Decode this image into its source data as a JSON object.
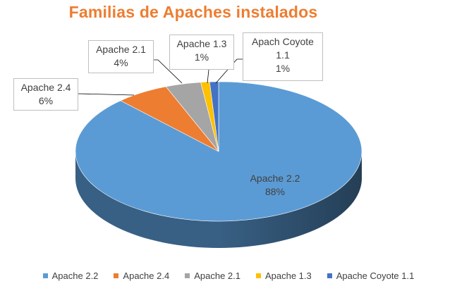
{
  "chart_data": {
    "type": "pie",
    "title": "Familias de Apaches instalados",
    "categories": [
      "Apache 2.2",
      "Apache 2.4",
      "Apache 2.1",
      "Apache 1.3",
      "Apache Coyote 1.1"
    ],
    "values": [
      88,
      6,
      4,
      1,
      1
    ],
    "colors": [
      "#5B9BD5",
      "#ED7D31",
      "#A5A5A5",
      "#FFC000",
      "#4472C4"
    ],
    "labels": [
      {
        "name_lines": [
          "Apache 2.2"
        ],
        "pct": "88%"
      },
      {
        "name_lines": [
          "Apache 2.4"
        ],
        "pct": "6%"
      },
      {
        "name_lines": [
          "Apache 2.1"
        ],
        "pct": "4%"
      },
      {
        "name_lines": [
          "Apache 1.3"
        ],
        "pct": "1%"
      },
      {
        "name_lines": [
          "Apach Coyote",
          "1.1"
        ],
        "pct": "1%"
      }
    ],
    "legend": {
      "position": "bottom",
      "entries": [
        "Apache 2.2",
        "Apache 2.4",
        "Apache 2.1",
        "Apache 1.3",
        "Apache Coyote 1.1"
      ]
    },
    "style": "3d"
  }
}
